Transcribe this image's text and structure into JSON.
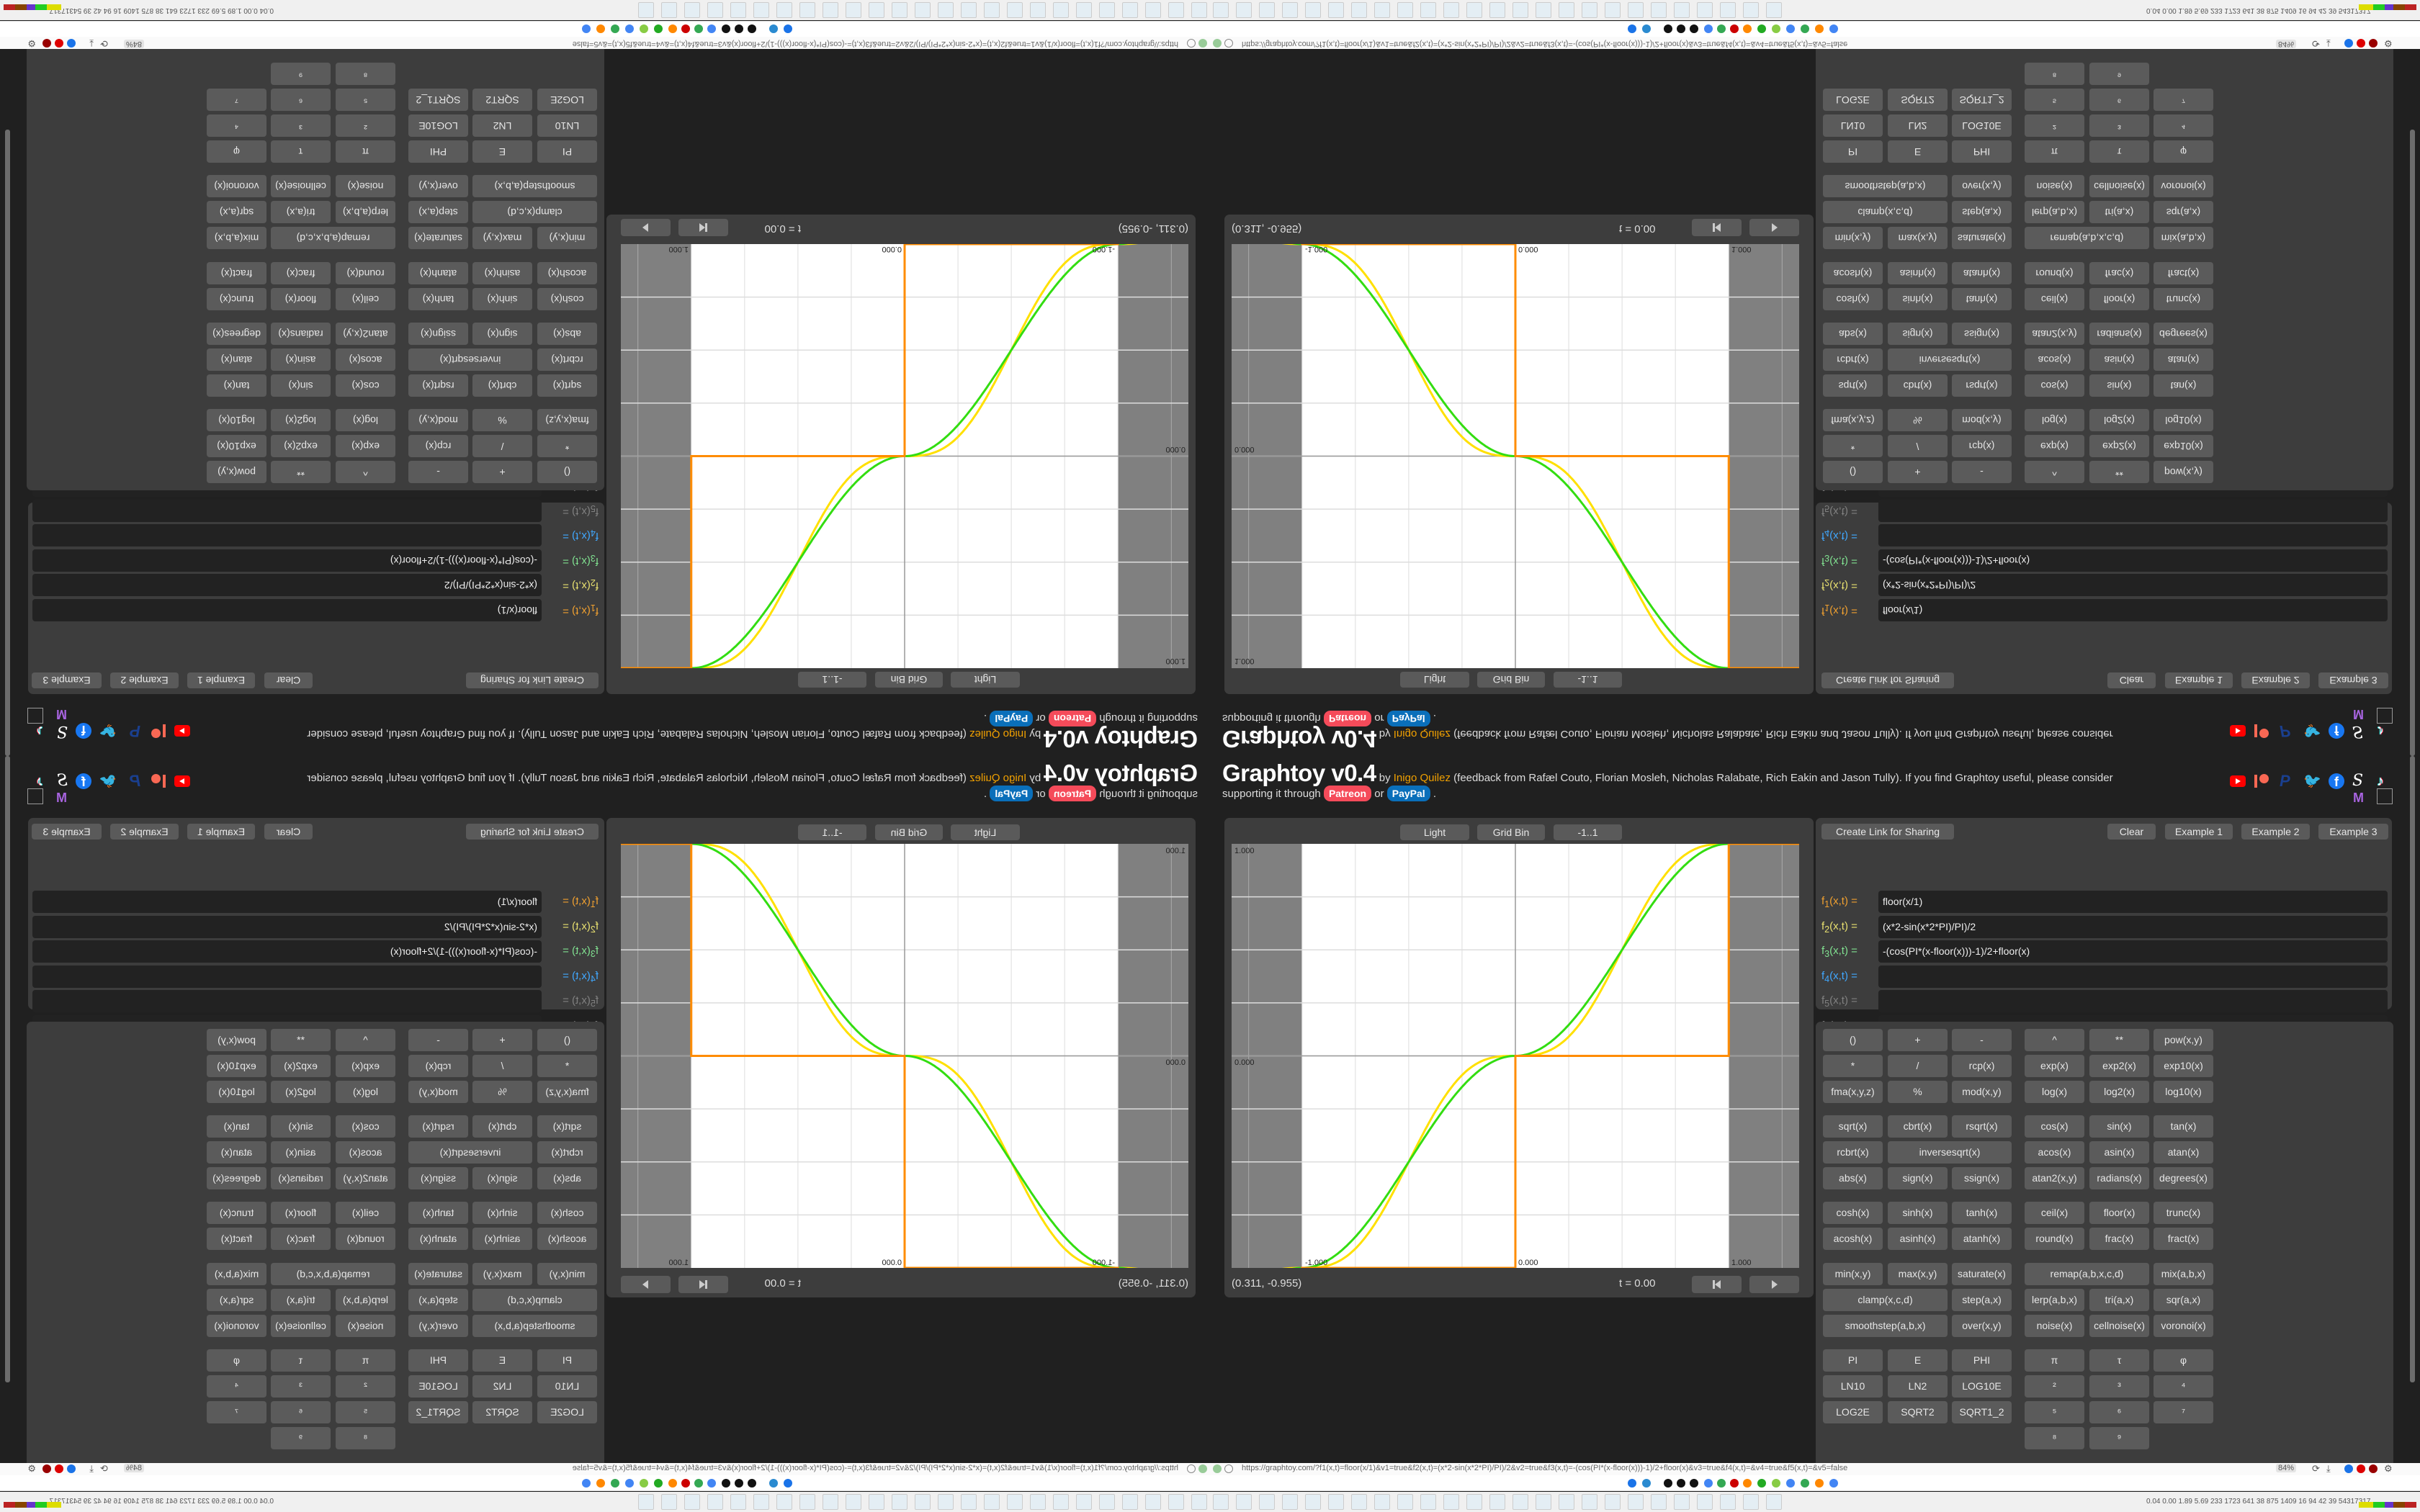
{
  "header": {
    "title": "Graphtoy v0.4",
    "by": "by",
    "author": "Inigo Quilez",
    "credits": "(feedback from Rafæl Couto, Florian Mosleh, Nicholas Ralabate, Rich Eakin and Jason Tully). If you find Graphtoy useful, please consider",
    "support_prefix": "supporting it through",
    "patreon": "Patreon",
    "or": "or",
    "paypal": "PayPal",
    "period": ".",
    "social_icons": [
      "youtube-icon",
      "patreon-icon",
      "paypal-icon",
      "twitter-icon",
      "facebook-icon",
      "substack-icon",
      "tiktok-icon",
      "mastodon-icon"
    ],
    "mastodon_letter": "M",
    "substack_letter": "S"
  },
  "graph": {
    "buttons": {
      "light": "Light",
      "grid": "Grid Bin",
      "range": "-1..1"
    },
    "tick_labels": {
      "y_top": "1.000",
      "y_mid": "0.000",
      "x_left": "-1.000",
      "x_mid": "0.000",
      "x_right": "1.000"
    },
    "x_range": [
      -1.33,
      1.33
    ],
    "y_range": [
      -1,
      1
    ],
    "grid_step": 0.25,
    "series_colors": {
      "f1": "#ff8c00",
      "f2": "#ffe000",
      "f3": "#33dd11"
    },
    "coords": "(0.311, -0.955)",
    "time": "t = 0.00",
    "rewind_icon": "skip-back-icon",
    "play_icon": "play-icon"
  },
  "toolbar": {
    "share": "Create Link for Sharing",
    "clear": "Clear",
    "ex1": "Example 1",
    "ex2": "Example 2",
    "ex3": "Example 3"
  },
  "functions": [
    {
      "f": "f",
      "sub": "1",
      "args": "(x,t) =",
      "value": "floor(x/1)",
      "color": "#f0a030"
    },
    {
      "f": "f",
      "sub": "2",
      "args": "(x,t) =",
      "value": "(x*2-sin(x*2*PI)/PI)/2",
      "color": "#e8e070"
    },
    {
      "f": "f",
      "sub": "3",
      "args": "(x,t) =",
      "value": "-(cos(PI*(x-floor(x)))-1)/2+floor(x)",
      "color": "#80e090"
    },
    {
      "f": "f",
      "sub": "4",
      "args": "(x,t) =",
      "value": "",
      "color": "#40a8ff"
    },
    {
      "f": "f",
      "sub": "5",
      "args": "(x,t) =",
      "value": "",
      "color": "#808080"
    },
    {
      "f": "f",
      "sub": "6",
      "args": "(x,t) =",
      "value": "",
      "color": "#808080"
    }
  ],
  "keypad": [
    [
      "()",
      "+",
      "-",
      "^",
      "**",
      "pow(x,y)"
    ],
    [
      "*",
      "/",
      "rcp(x)",
      "exp(x)",
      "exp2(x)",
      "exp10(x)"
    ],
    [
      "fma(x,y,z)",
      "%",
      "mod(x,y)",
      "log(x)",
      "log2(x)",
      "log10(x)"
    ],
    [
      "sqrt(x)",
      "cbrt(x)",
      "rsqrt(x)",
      "cos(x)",
      "sin(x)",
      "tan(x)"
    ],
    [
      "rcbrt(x)",
      "inversesqrt(x)",
      "acos(x)",
      "asin(x)",
      "atan(x)"
    ],
    [
      "abs(x)",
      "sign(x)",
      "ssign(x)",
      "atan2(x,y)",
      "radians(x)",
      "degrees(x)"
    ],
    [
      "cosh(x)",
      "sinh(x)",
      "tanh(x)",
      "ceil(x)",
      "floor(x)",
      "trunc(x)"
    ],
    [
      "acosh(x)",
      "asinh(x)",
      "atanh(x)",
      "round(x)",
      "frac(x)",
      "fract(x)"
    ],
    [
      "min(x,y)",
      "max(x,y)",
      "saturate(x)",
      "remap(a,b,x,c,d)",
      "mix(a,b,x)"
    ],
    [
      "clamp(x,c,d)",
      "step(a,x)",
      "lerp(a,b,x)",
      "tri(a,x)",
      "sqr(a,x)"
    ],
    [
      "smoothstep(a,b,x)",
      "over(x,y)",
      "noise(x)",
      "cellnoise(x)",
      "voronoi(x)"
    ],
    [
      "PI",
      "E",
      "PHI",
      "π",
      "τ",
      "φ"
    ],
    [
      "LN10",
      "LN2",
      "LOG10E",
      "²",
      "³",
      "⁴"
    ],
    [
      "LOG2E",
      "SQRT2",
      "SQRT1_2",
      "⁵",
      "⁶",
      "⁷"
    ],
    [
      "⁸",
      "⁹"
    ]
  ],
  "browser": {
    "url": "https://graphtoy.com/?f1(x,t)=floor(x/1)&v1=true&f2(x,t)=(x*2-sin(x*2*PI)/PI)/2&v2=true&f3(x,t)=-(cos(PI*(x-floor(x)))-1)/2+floor(x)&v3=true&f4(x,t)=&v4=true&f5(x,t)=&v5=false",
    "zoom": "84%",
    "tray_stats": "0.04 0.00 1.89 5.69 233 1723 641  38  875 1409 16  94  42  39 54317317"
  }
}
